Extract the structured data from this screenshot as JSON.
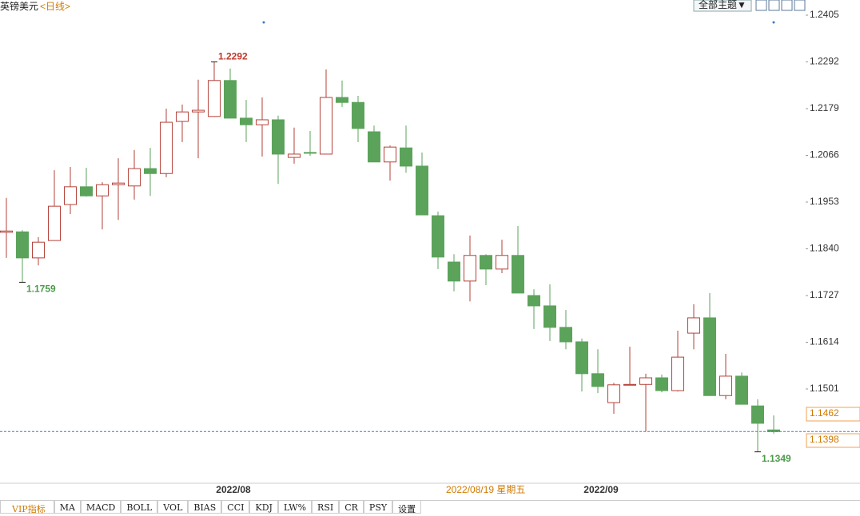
{
  "header": {
    "symbol": "英镑美元",
    "period": "<日线>"
  },
  "toolbar": {
    "theme_button": "全部主题▼"
  },
  "tabs": [
    "VIP指标",
    "MA",
    "MACD",
    "BOLL",
    "VOL",
    "BIAS",
    "CCI",
    "KDJ",
    "LW%",
    "RSI",
    "CR",
    "PSY",
    "设置"
  ],
  "crosshair_date": "2022/08/19 星期五",
  "chart_data": {
    "type": "candlestick",
    "categories": [
      null,
      null,
      null,
      null,
      null,
      null,
      null,
      null,
      null,
      null,
      null,
      null,
      null,
      null,
      "2022/08",
      null,
      null,
      null,
      null,
      null,
      null,
      null,
      null,
      null,
      null,
      null,
      null,
      null,
      null,
      null,
      null,
      null,
      null,
      null,
      null,
      null,
      null,
      "2022/09",
      null,
      null,
      null,
      null,
      null,
      null,
      null,
      null,
      null,
      null,
      null
    ],
    "open": [
      1.188,
      1.1881,
      1.1818,
      1.186,
      1.1947,
      1.199,
      1.1968,
      1.1995,
      1.1992,
      1.2034,
      1.2022,
      1.2148,
      1.2171,
      1.216,
      1.2247,
      1.2156,
      1.214,
      1.2152,
      1.2061,
      1.2073,
      1.2069,
      1.2206,
      1.2194,
      1.2123,
      1.205,
      1.2084,
      1.204,
      1.192,
      1.1808,
      1.1762,
      1.1824,
      1.1791,
      1.1824,
      1.1727,
      1.1702,
      1.165,
      1.1615,
      1.1538,
      1.1468,
      1.1511,
      1.1512,
      1.1528,
      1.1497,
      1.1636,
      1.1673,
      1.1485,
      1.1532,
      1.146,
      1.1402
    ],
    "high": [
      1.1963,
      1.1885,
      1.1868,
      1.203,
      1.2038,
      1.2036,
      1.2001,
      1.2059,
      1.2079,
      1.2084,
      1.2179,
      1.2189,
      1.2249,
      1.2292,
      1.2276,
      1.22,
      1.2206,
      1.2162,
      1.2133,
      1.2125,
      1.2274,
      1.2247,
      1.221,
      1.2138,
      1.209,
      1.2138,
      1.2073,
      1.193,
      1.1827,
      1.1872,
      1.1827,
      1.1862,
      1.1895,
      1.1742,
      1.1754,
      1.1692,
      1.1623,
      1.1597,
      1.1516,
      1.1603,
      1.1538,
      1.1536,
      1.1642,
      1.1706,
      1.1733,
      1.1586,
      1.1541,
      1.1476,
      1.1437
    ],
    "low": [
      1.1818,
      1.1759,
      1.18,
      1.186,
      1.1924,
      1.1966,
      1.1887,
      1.191,
      1.1959,
      1.1968,
      1.2013,
      1.2098,
      1.2059,
      1.216,
      1.2156,
      1.2098,
      1.2063,
      1.1997,
      1.2046,
      1.2065,
      1.2069,
      1.2183,
      1.2098,
      1.205,
      1.2005,
      1.2024,
      1.1922,
      1.1791,
      1.1737,
      1.1713,
      1.1752,
      1.1781,
      1.1733,
      1.1646,
      1.1617,
      1.1597,
      1.1495,
      1.1491,
      1.1441,
      1.1511,
      1.1398,
      1.1493,
      1.1495,
      1.1597,
      1.1485,
      1.1476,
      1.1464,
      1.1349,
      1.1393
    ],
    "close": [
      1.1883,
      1.1818,
      1.1856,
      1.1943,
      1.199,
      1.1968,
      1.1995,
      1.1999,
      1.2034,
      1.2022,
      1.2146,
      1.2171,
      1.2175,
      1.2247,
      1.2156,
      1.214,
      1.2152,
      1.2069,
      1.2069,
      1.2071,
      1.2206,
      1.2194,
      1.2131,
      1.205,
      1.2086,
      1.204,
      1.1922,
      1.182,
      1.1762,
      1.1824,
      1.1791,
      1.1824,
      1.1733,
      1.1702,
      1.165,
      1.1615,
      1.1538,
      1.1507,
      1.1511,
      1.1512,
      1.1528,
      1.1497,
      1.1578,
      1.1673,
      1.1485,
      1.1532,
      1.1464,
      1.1418,
      1.1398
    ],
    "up_color": "#b5423a",
    "down_color": "#5ba35b",
    "ylim": [
      1.1273,
      1.2405
    ],
    "yticks": [
      1.2405,
      1.2292,
      1.2179,
      {
        "value": 1.2066,
        "label": "1.2066"
      },
      1.1953,
      {
        "value": 1.184,
        "label": "1.1840"
      },
      1.1727,
      1.1614,
      1.1501
    ],
    "annotations": [
      {
        "kind": "high",
        "value": 1.2292
      },
      {
        "kind": "low",
        "value": 1.1759
      },
      {
        "kind": "low",
        "value": 1.1349
      }
    ],
    "marker_price": 1.1462,
    "current_price": 1.1398
  }
}
